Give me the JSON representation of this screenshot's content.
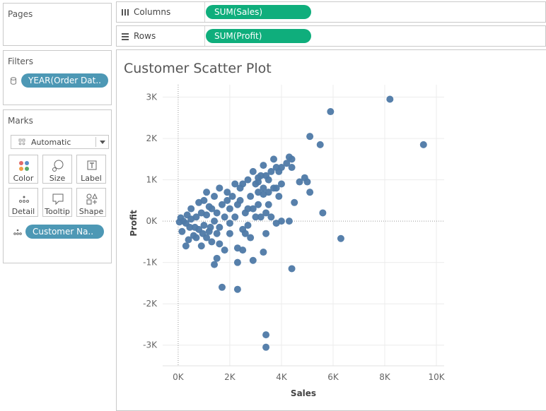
{
  "pages": {
    "title": "Pages"
  },
  "filters": {
    "title": "Filters",
    "pill": "YEAR(Order Dat.."
  },
  "marks": {
    "title": "Marks",
    "type_dropdown": "Automatic",
    "buttons": [
      {
        "label": "Color",
        "icon": "color-icon"
      },
      {
        "label": "Size",
        "icon": "size-icon"
      },
      {
        "label": "Label",
        "icon": "label-icon"
      },
      {
        "label": "Detail",
        "icon": "detail-icon"
      },
      {
        "label": "Tooltip",
        "icon": "tooltip-icon"
      },
      {
        "label": "Shape",
        "icon": "shape-icon"
      }
    ],
    "detail_pill": "Customer Na.."
  },
  "columns_shelf": {
    "label": "Columns",
    "pill": "SUM(Sales)"
  },
  "rows_shelf": {
    "label": "Rows",
    "pill": "SUM(Profit)"
  },
  "colors": {
    "accent_green": "#0fae7c",
    "pill_blue": "#4d98b5",
    "mark": "#4e79a7"
  },
  "chart_data": {
    "type": "scatter",
    "title": "Customer Scatter Plot",
    "xlabel": "Sales",
    "ylabel": "Profit",
    "xlim": [
      -600,
      10300
    ],
    "ylim": [
      -3500,
      3300
    ],
    "x_ticks": [
      "0K",
      "2K",
      "4K",
      "6K",
      "8K",
      "10K"
    ],
    "x_tick_values": [
      0,
      2000,
      4000,
      6000,
      8000,
      10000
    ],
    "y_ticks": [
      "3K",
      "2K",
      "1K",
      "0K",
      "-1K",
      "-2K",
      "-3K"
    ],
    "y_tick_values": [
      3000,
      2000,
      1000,
      0,
      -1000,
      -2000,
      -3000
    ],
    "grid": true,
    "points": [
      [
        9500,
        1850
      ],
      [
        8200,
        2950
      ],
      [
        5900,
        2650
      ],
      [
        5100,
        2050
      ],
      [
        5500,
        1850
      ],
      [
        4900,
        1050
      ],
      [
        5000,
        950
      ],
      [
        5100,
        700
      ],
      [
        4700,
        950
      ],
      [
        4500,
        450
      ],
      [
        5600,
        200
      ],
      [
        6300,
        -420
      ],
      [
        4400,
        -1150
      ],
      [
        4300,
        0
      ],
      [
        4000,
        0
      ],
      [
        3800,
        -50
      ],
      [
        3900,
        600
      ],
      [
        4400,
        1500
      ],
      [
        4300,
        1550
      ],
      [
        4200,
        1400
      ],
      [
        4400,
        1300
      ],
      [
        4000,
        1300
      ],
      [
        3800,
        1300
      ],
      [
        3700,
        1500
      ],
      [
        3900,
        1200
      ],
      [
        3600,
        1200
      ],
      [
        3400,
        1100
      ],
      [
        3300,
        1350
      ],
      [
        3200,
        1100
      ],
      [
        3100,
        1050
      ],
      [
        3000,
        900
      ],
      [
        3300,
        800
      ],
      [
        3500,
        700
      ],
      [
        3700,
        800
      ],
      [
        3300,
        650
      ],
      [
        3100,
        400
      ],
      [
        3400,
        200
      ],
      [
        3200,
        100
      ],
      [
        3400,
        -300
      ],
      [
        3300,
        -750
      ],
      [
        3400,
        -2750
      ],
      [
        3400,
        -3050
      ],
      [
        2900,
        -950
      ],
      [
        2800,
        -400
      ],
      [
        2500,
        -700
      ],
      [
        2300,
        -650
      ],
      [
        2300,
        -1000
      ],
      [
        2300,
        -1650
      ],
      [
        1700,
        -1600
      ],
      [
        1500,
        -900
      ],
      [
        1400,
        -1050
      ],
      [
        1600,
        -550
      ],
      [
        1800,
        -700
      ],
      [
        2000,
        -300
      ],
      [
        2500,
        -200
      ],
      [
        2600,
        200
      ],
      [
        2300,
        400
      ],
      [
        2000,
        300
      ],
      [
        1900,
        700
      ],
      [
        2200,
        900
      ],
      [
        2500,
        900
      ],
      [
        2700,
        1000
      ],
      [
        2400,
        800
      ],
      [
        2100,
        600
      ],
      [
        1900,
        500
      ],
      [
        1500,
        200
      ],
      [
        1300,
        300
      ],
      [
        1100,
        150
      ],
      [
        900,
        200
      ],
      [
        700,
        100
      ],
      [
        500,
        50
      ],
      [
        300,
        -50
      ],
      [
        200,
        0
      ],
      [
        100,
        80
      ],
      [
        50,
        -20
      ],
      [
        800,
        -200
      ],
      [
        1000,
        -100
      ],
      [
        1200,
        -250
      ],
      [
        600,
        -350
      ],
      [
        400,
        -450
      ],
      [
        900,
        -600
      ],
      [
        300,
        -600
      ],
      [
        700,
        -400
      ],
      [
        1100,
        -400
      ],
      [
        1300,
        -500
      ],
      [
        1000,
        500
      ],
      [
        1400,
        600
      ],
      [
        1700,
        400
      ],
      [
        1200,
        350
      ],
      [
        1600,
        800
      ],
      [
        2800,
        600
      ],
      [
        2900,
        300
      ],
      [
        3000,
        100
      ],
      [
        2700,
        -100
      ],
      [
        2600,
        -300
      ],
      [
        3800,
        800
      ],
      [
        4000,
        900
      ],
      [
        3500,
        400
      ],
      [
        3600,
        100
      ],
      [
        3100,
        700
      ],
      [
        2200,
        100
      ],
      [
        1800,
        100
      ],
      [
        1400,
        0
      ],
      [
        2000,
        -50
      ],
      [
        1600,
        -150
      ],
      [
        500,
        300
      ],
      [
        800,
        450
      ],
      [
        1100,
        700
      ],
      [
        350,
        150
      ],
      [
        650,
        -150
      ],
      [
        150,
        -250
      ],
      [
        450,
        -150
      ],
      [
        950,
        -300
      ],
      [
        1250,
        -150
      ],
      [
        1500,
        -300
      ],
      [
        2400,
        500
      ],
      [
        2700,
        300
      ],
      [
        3100,
        950
      ],
      [
        2900,
        1200
      ],
      [
        3500,
        1000
      ]
    ]
  }
}
